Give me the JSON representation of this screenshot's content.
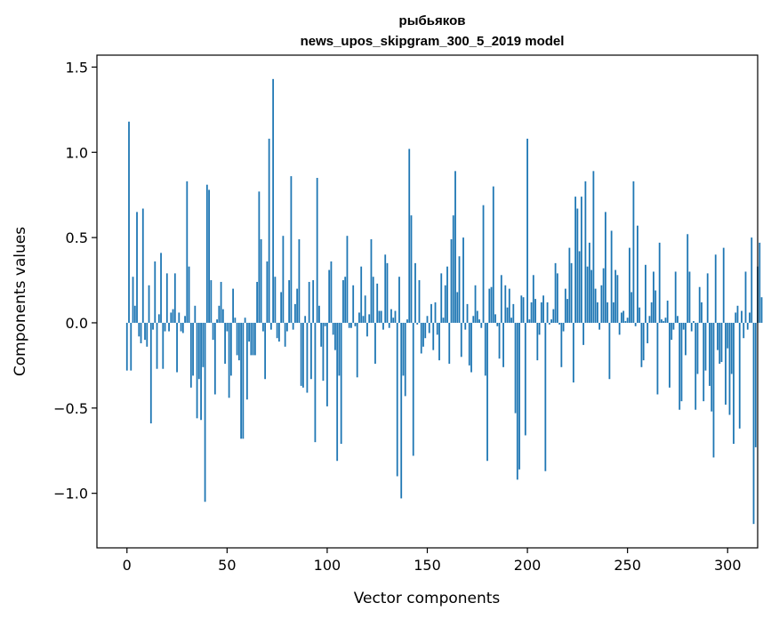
{
  "chart_data": {
    "type": "bar",
    "title_line1": "рыбьяков",
    "title_line2": "news_upos_skipgram_300_5_2019 model",
    "xlabel": "Vector components",
    "ylabel": "Components values",
    "xlim": [
      -15,
      315
    ],
    "ylim": [
      -1.32,
      1.57
    ],
    "xticks": [
      0,
      50,
      100,
      150,
      200,
      250,
      300
    ],
    "xtick_labels": [
      "0",
      "50",
      "100",
      "150",
      "200",
      "250",
      "300"
    ],
    "yticks": [
      -1.0,
      -0.5,
      0.0,
      0.5,
      1.0,
      1.5
    ],
    "ytick_labels": [
      "−1.0",
      "−0.5",
      "0.0",
      "0.5",
      "1.0",
      "1.5"
    ],
    "grid": false,
    "bar_color": "#1f77b4",
    "values": [
      -0.28,
      1.18,
      -0.28,
      0.27,
      0.1,
      0.65,
      -0.08,
      -0.12,
      0.67,
      -0.1,
      -0.14,
      0.22,
      -0.59,
      -0.04,
      0.36,
      -0.27,
      0.05,
      0.41,
      -0.27,
      -0.05,
      0.29,
      -0.05,
      0.06,
      0.08,
      0.29,
      -0.29,
      0.06,
      -0.05,
      -0.06,
      0.04,
      0.83,
      0.33,
      -0.38,
      -0.31,
      0.1,
      -0.56,
      -0.33,
      -0.57,
      -0.26,
      -1.05,
      0.81,
      0.78,
      0.25,
      -0.1,
      -0.42,
      0.02,
      0.1,
      0.24,
      0.08,
      -0.24,
      -0.05,
      -0.44,
      -0.31,
      0.2,
      0.03,
      -0.19,
      -0.22,
      -0.68,
      -0.68,
      0.03,
      -0.45,
      -0.11,
      -0.19,
      -0.19,
      -0.19,
      0.24,
      0.77,
      0.49,
      -0.05,
      -0.33,
      0.36,
      1.08,
      -0.04,
      1.43,
      0.27,
      -0.09,
      -0.11,
      0.18,
      0.51,
      -0.14,
      -0.05,
      0.25,
      0.86,
      -0.04,
      0.11,
      0.2,
      0.49,
      -0.37,
      -0.38,
      0.04,
      -0.41,
      0.24,
      -0.33,
      0.25,
      -0.7,
      0.85,
      0.1,
      -0.14,
      -0.34,
      -0.02,
      -0.49,
      0.31,
      0.36,
      -0.07,
      -0.16,
      -0.81,
      -0.31,
      -0.71,
      0.25,
      0.27,
      0.51,
      -0.03,
      -0.03,
      0.22,
      -0.02,
      -0.32,
      0.06,
      0.33,
      0.04,
      0.16,
      -0.08,
      0.05,
      0.49,
      0.27,
      -0.24,
      0.23,
      0.07,
      0.07,
      -0.04,
      0.4,
      0.35,
      -0.03,
      0.08,
      0.03,
      0.07,
      -0.9,
      0.27,
      -1.03,
      -0.31,
      -0.43,
      0.02,
      1.02,
      0.63,
      -0.78,
      0.35,
      -0.01,
      0.25,
      -0.18,
      -0.14,
      -0.09,
      0.04,
      -0.06,
      0.11,
      -0.16,
      0.12,
      -0.07,
      -0.22,
      0.29,
      0.03,
      0.22,
      0.33,
      -0.24,
      0.49,
      0.63,
      0.89,
      0.18,
      0.39,
      -0.2,
      0.5,
      -0.04,
      0.11,
      -0.25,
      -0.29,
      0.04,
      0.22,
      0.07,
      0.02,
      -0.03,
      0.69,
      -0.31,
      -0.81,
      0.2,
      0.21,
      0.8,
      0.05,
      -0.02,
      -0.21,
      0.28,
      -0.26,
      0.22,
      0.09,
      0.2,
      0.03,
      0.11,
      -0.53,
      -0.92,
      -0.86,
      0.16,
      0.15,
      -0.66,
      1.08,
      0.02,
      0.12,
      0.28,
      0.14,
      -0.22,
      -0.07,
      0.12,
      0.16,
      -0.87,
      0.12,
      -0.01,
      0.02,
      0.08,
      0.35,
      0.29,
      -0.01,
      -0.26,
      -0.05,
      0.2,
      0.14,
      0.44,
      0.35,
      -0.35,
      0.74,
      0.67,
      0.42,
      0.74,
      -0.13,
      0.83,
      0.33,
      0.47,
      0.31,
      0.89,
      0.2,
      0.12,
      -0.04,
      0.22,
      0.32,
      0.65,
      0.12,
      -0.33,
      0.54,
      0.12,
      0.31,
      0.28,
      -0.07,
      0.06,
      0.07,
      0.01,
      0.03,
      0.44,
      0.18,
      0.83,
      -0.02,
      0.57,
      0.09,
      -0.26,
      -0.22,
      0.34,
      -0.12,
      0.04,
      0.12,
      0.3,
      0.19,
      -0.42,
      0.47,
      0.02,
      0.01,
      0.03,
      0.13,
      -0.38,
      -0.1,
      -0.04,
      0.3,
      0.04,
      -0.51,
      -0.46,
      -0.04,
      -0.19,
      0.52,
      0.3,
      -0.05,
      0.01,
      -0.51,
      -0.3,
      0.21,
      0.12,
      -0.46,
      -0.28,
      0.29,
      -0.37,
      -0.52,
      -0.79,
      0.4,
      -0.16,
      -0.24,
      -0.23,
      0.44,
      -0.48,
      -0.15,
      -0.54,
      -0.3,
      -0.71,
      0.06,
      0.1,
      -0.62,
      0.07,
      -0.09,
      0.3,
      -0.04,
      0.06,
      0.5,
      -1.18,
      -0.73,
      0.33,
      0.47,
      0.15
    ]
  }
}
